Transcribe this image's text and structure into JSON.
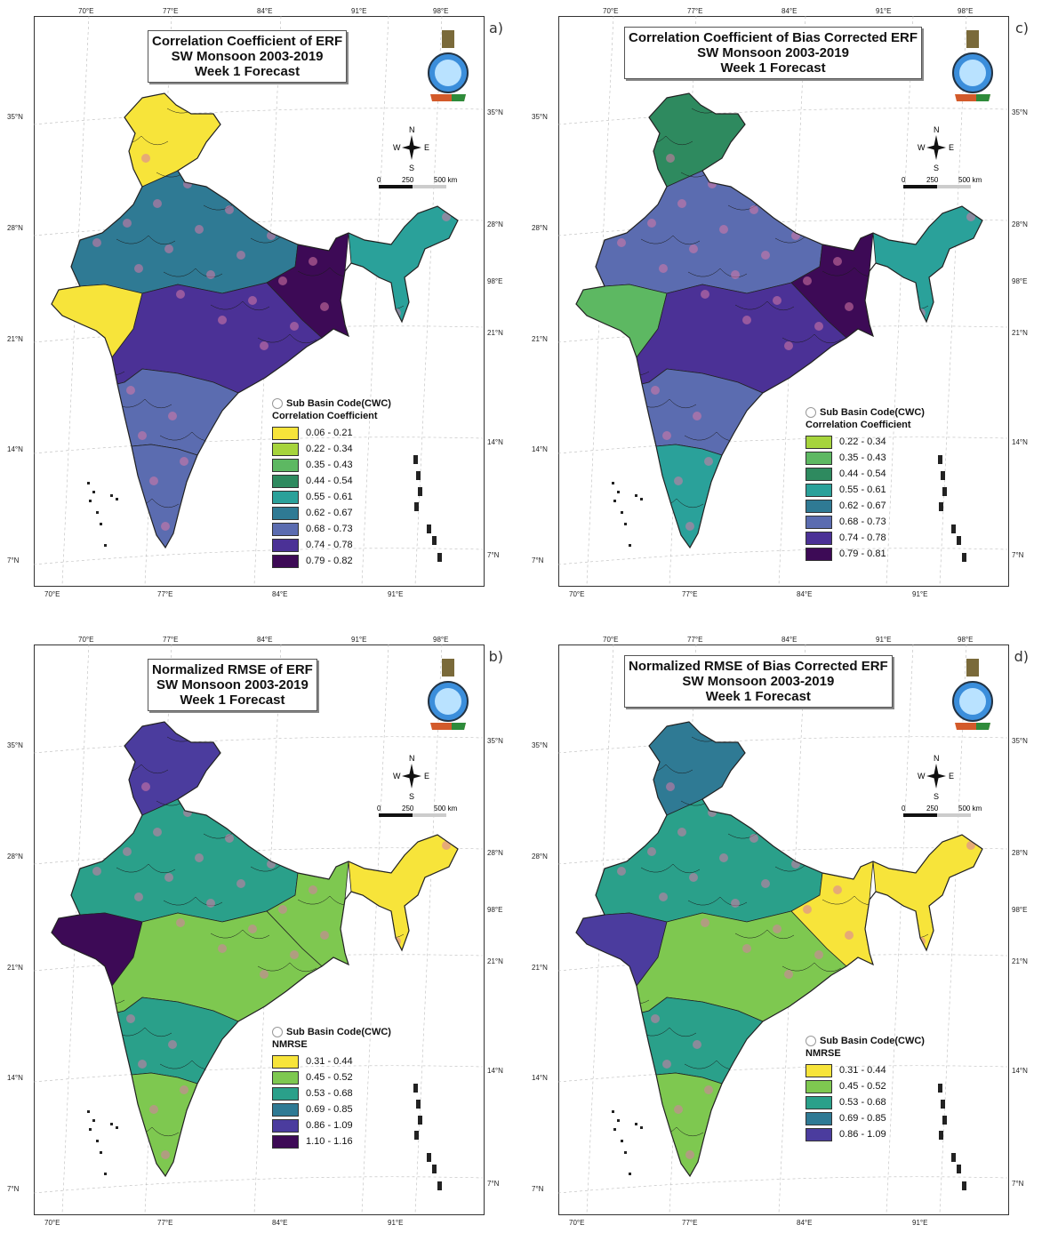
{
  "panels": [
    {
      "letter": "a)",
      "title": [
        "Correlation Coefficient of ERF",
        "SW Monsoon 2003-2019",
        "Week 1 Forecast"
      ],
      "sub_basin_label": "Sub Basin Code(CWC)",
      "legend_title": "Correlation Coefficient",
      "classes": [
        {
          "label": "0.06 - 0.21",
          "color": "#f7e43a"
        },
        {
          "label": "0.22 - 0.34",
          "color": "#a6d43c"
        },
        {
          "label": "0.35 - 0.43",
          "color": "#5db862"
        },
        {
          "label": "0.44 - 0.54",
          "color": "#2e8a5f"
        },
        {
          "label": "0.55 - 0.61",
          "color": "#2aa19a"
        },
        {
          "label": "0.62 - 0.67",
          "color": "#2f7a94"
        },
        {
          "label": "0.68 - 0.73",
          "color": "#5b6cb0"
        },
        {
          "label": "0.74 - 0.78",
          "color": "#4b3196"
        },
        {
          "label": "0.79 - 0.82",
          "color": "#3d0a56"
        }
      ]
    },
    {
      "letter": "c)",
      "title": [
        "Correlation Coefficient of Bias Corrected ERF",
        "SW Monsoon 2003-2019",
        "Week 1 Forecast"
      ],
      "sub_basin_label": "Sub Basin Code(CWC)",
      "legend_title": "Correlation Coefficient",
      "classes": [
        {
          "label": "0.22 - 0.34",
          "color": "#a6d43c"
        },
        {
          "label": "0.35 - 0.43",
          "color": "#5db862"
        },
        {
          "label": "0.44 - 0.54",
          "color": "#2e8a5f"
        },
        {
          "label": "0.55 - 0.61",
          "color": "#2aa19a"
        },
        {
          "label": "0.62 - 0.67",
          "color": "#2f7a94"
        },
        {
          "label": "0.68 - 0.73",
          "color": "#5b6cb0"
        },
        {
          "label": "0.74 - 0.78",
          "color": "#4b3196"
        },
        {
          "label": "0.79 - 0.81",
          "color": "#3d0a56"
        }
      ]
    },
    {
      "letter": "b)",
      "title": [
        "Normalized RMSE of ERF",
        "SW Monsoon 2003-2019",
        "Week 1 Forecast"
      ],
      "sub_basin_label": "Sub Basin Code(CWC)",
      "legend_title": "NMRSE",
      "classes": [
        {
          "label": "0.31 - 0.44",
          "color": "#f7e43a"
        },
        {
          "label": "0.45 - 0.52",
          "color": "#7ec850"
        },
        {
          "label": "0.53 - 0.68",
          "color": "#2aa08a"
        },
        {
          "label": "0.69 - 0.85",
          "color": "#2f7a94"
        },
        {
          "label": "0.86 - 1.09",
          "color": "#4b3c9e"
        },
        {
          "label": "1.10 - 1.16",
          "color": "#3d0a56"
        }
      ]
    },
    {
      "letter": "d)",
      "title": [
        "Normalized RMSE of Bias Corrected ERF",
        "SW Monsoon 2003-2019",
        "Week 1 Forecast"
      ],
      "sub_basin_label": "Sub Basin Code(CWC)",
      "legend_title": "NMRSE",
      "classes": [
        {
          "label": "0.31 - 0.44",
          "color": "#f7e43a"
        },
        {
          "label": "0.45 - 0.52",
          "color": "#7ec850"
        },
        {
          "label": "0.53 - 0.68",
          "color": "#2aa08a"
        },
        {
          "label": "0.69 - 0.85",
          "color": "#2f7a94"
        },
        {
          "label": "0.86 - 1.09",
          "color": "#4b3c9e"
        }
      ]
    }
  ],
  "axis_labels": {
    "top": [
      "70°E",
      "77°E",
      "84°E",
      "91°E",
      "98°E"
    ],
    "bottom": [
      "70°E",
      "77°E",
      "84°E",
      "91°E"
    ],
    "left": [
      "35°N",
      "28°N",
      "21°N",
      "14°N",
      "7°N"
    ],
    "right": [
      "35°N",
      "28°N",
      "98°E",
      "21°N",
      "14°N",
      "7°N"
    ]
  },
  "compass": {
    "n": "N",
    "s": "S",
    "e": "E",
    "w": "W"
  },
  "scale": {
    "zero": "0",
    "mid": "250",
    "end": "500 km"
  },
  "map_fill": {
    "panel_a": [
      "#3d0a56",
      "#4b3196",
      "#5b6cb0",
      "#2f7a94",
      "#2aa19a",
      "#2e8a5f",
      "#f7e43a"
    ],
    "panel_c": [
      "#3d0a56",
      "#4b3196",
      "#5b6cb0",
      "#2f7a94",
      "#2aa19a",
      "#2e8a5f",
      "#5db862"
    ],
    "panel_b": [
      "#3d0a56",
      "#4b3c9e",
      "#2f7a94",
      "#2aa08a",
      "#7ec850",
      "#f7e43a"
    ],
    "panel_d": [
      "#4b3c9e",
      "#2f7a94",
      "#2aa08a",
      "#7ec850",
      "#f7e43a"
    ]
  }
}
